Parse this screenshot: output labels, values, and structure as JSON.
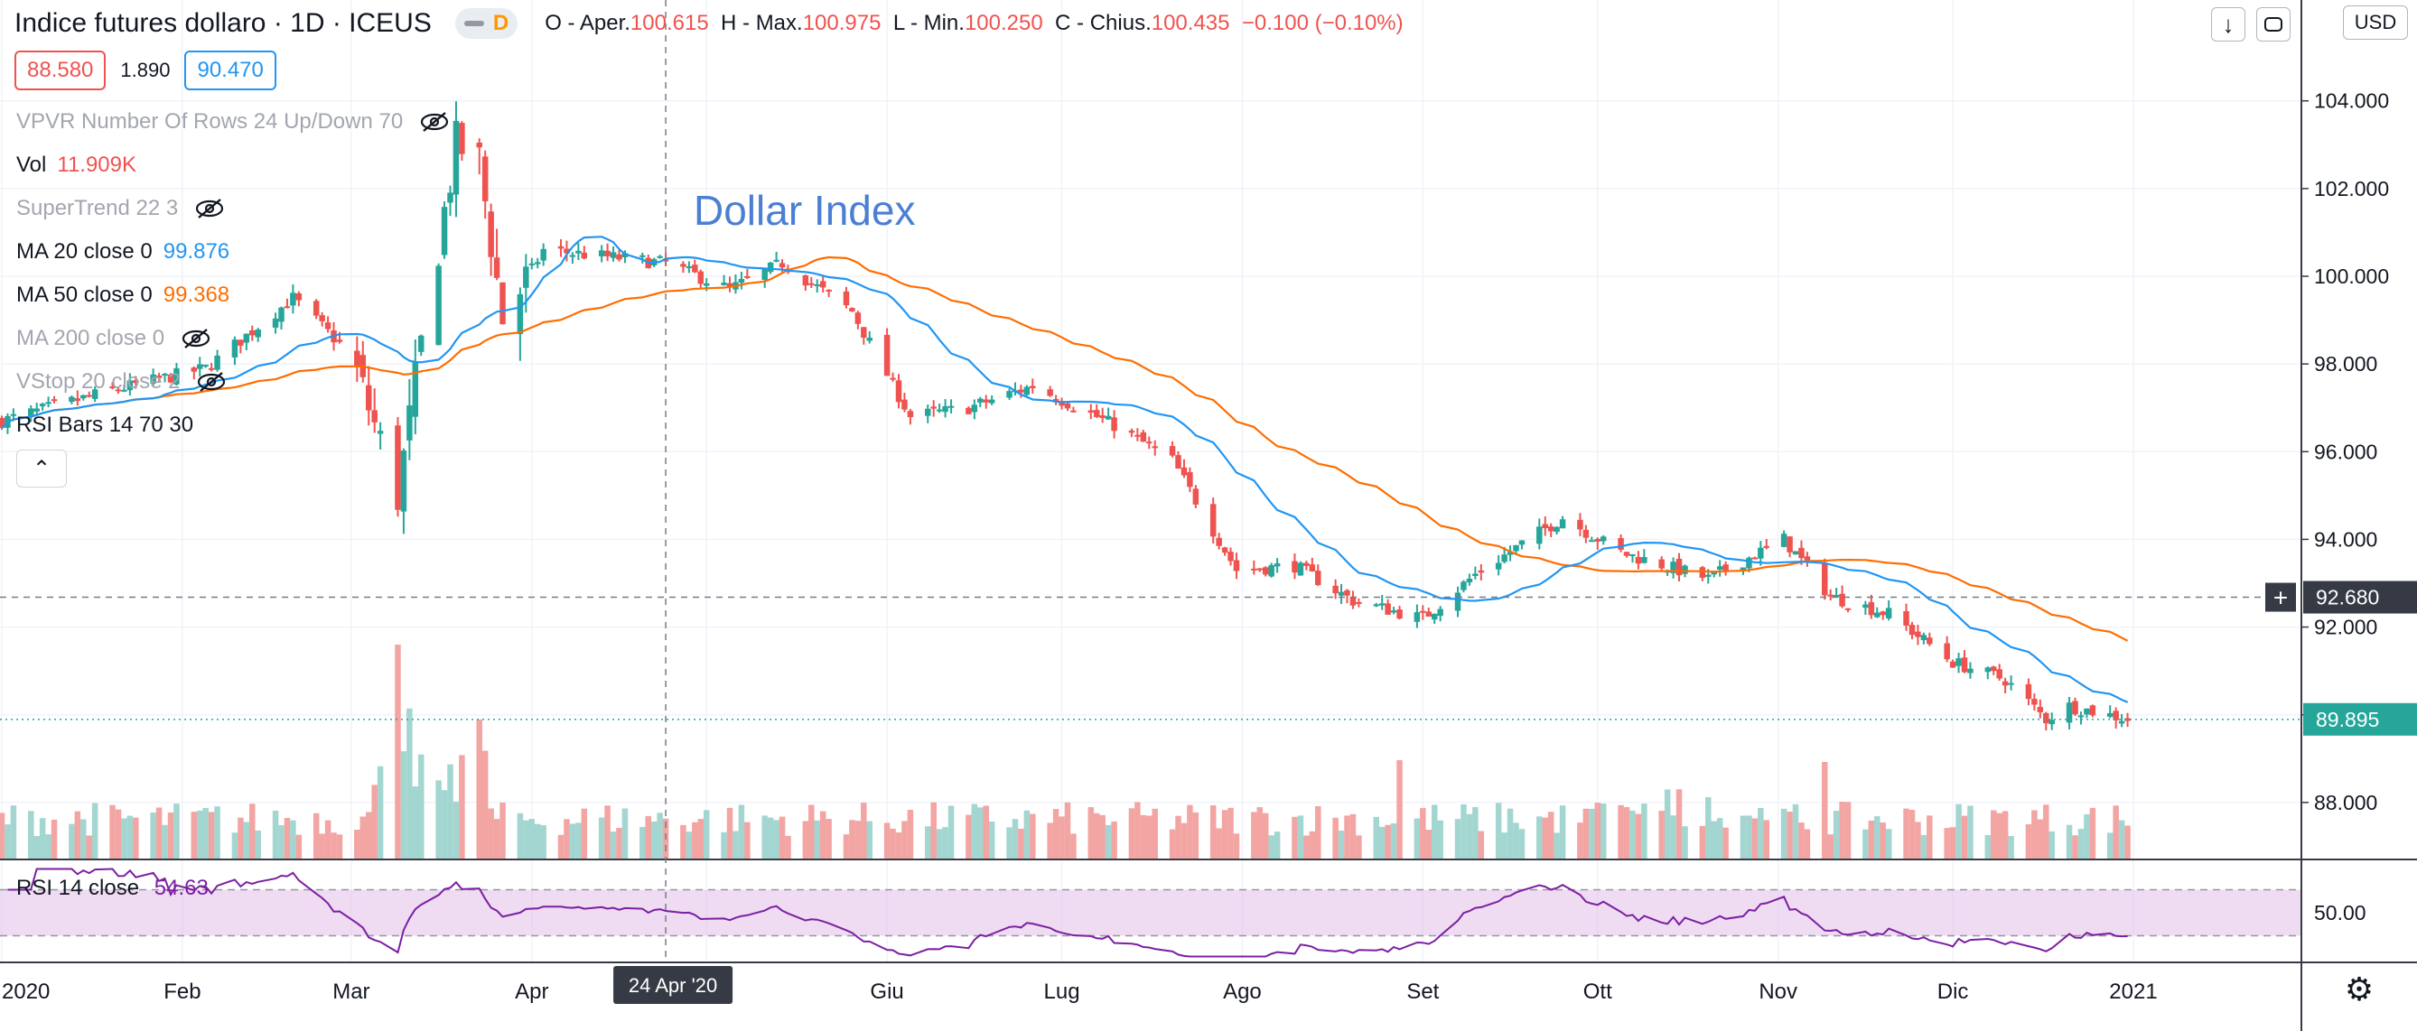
{
  "header": {
    "title": "Indice futures dollaro · 1D · ICEUS",
    "interval_badge": "D",
    "ohlc": {
      "open_label": "O - Aper.",
      "open": "100.615",
      "high_label": "H - Max.",
      "high": "100.975",
      "low_label": "L - Min.",
      "low": "100.250",
      "close_label": "C - Chius.",
      "close": "100.435",
      "change": "−0.100 (−0.10%)"
    },
    "price_boxes": {
      "bid": "88.580",
      "spread": "1.890",
      "ask": "90.470"
    }
  },
  "indicators": [
    {
      "label": "VPVR Number Of Rows 24 Up/Down 70",
      "value": "",
      "hidden": true
    },
    {
      "label": "Vol",
      "value": "11.909K",
      "hidden": false
    },
    {
      "label": "SuperTrend 22 3",
      "value": "",
      "hidden": true
    },
    {
      "label": "MA 20 close 0",
      "value": "99.876",
      "hidden": false
    },
    {
      "label": "MA 50 close 0",
      "value": "99.368",
      "hidden": false
    },
    {
      "label": "MA 200 close 0",
      "value": "",
      "hidden": true
    },
    {
      "label": "VStop 20 close 2",
      "value": "",
      "hidden": true
    },
    {
      "label": "RSI Bars 14 70 30",
      "value": "",
      "hidden": false
    }
  ],
  "rsi": {
    "label": "RSI 14 close",
    "value": "54.63"
  },
  "annotation": "Dollar Index",
  "currency": "USD",
  "crosshair": {
    "price_label": "92.680",
    "date_label": "24 Apr '20"
  },
  "last_price_label": "89.895",
  "colors": {
    "up": "#26a69a",
    "down": "#ef5350",
    "vol_up": "#a3d6d0",
    "vol_down": "#f2a5a3",
    "ma20": "#2196f3",
    "ma50": "#ff6d00",
    "rsi_line": "#7b1fa2",
    "rsi_band": "#e1bee7"
  },
  "icons": {
    "download": "arrow-down-icon",
    "refresh": "refresh-icon",
    "settings": "gear-icon",
    "hidden": "eye-off-icon"
  },
  "chart_data": {
    "type": "candlestick",
    "title": "Indice futures dollaro · 1D · ICEUS",
    "x_range": [
      "2020-01-01",
      "2021-01-01"
    ],
    "x_tick_labels": [
      "2020",
      "Feb",
      "Mar",
      "Apr",
      "24 Apr '20",
      "Giu",
      "Lug",
      "Ago",
      "Set",
      "Ott",
      "Nov",
      "Dic",
      "2021"
    ],
    "y_tick_labels": [
      "88.000",
      "90.000",
      "92.000",
      "94.000",
      "96.000",
      "98.000",
      "100.000",
      "102.000",
      "104.000"
    ],
    "y_range": [
      86.7,
      106.3
    ],
    "rsi_tick_labels": [
      "50.00"
    ],
    "rsi_bands": [
      30,
      70
    ],
    "close_anchors": [
      [
        "2020-01-01",
        96.7
      ],
      [
        "2020-01-20",
        97.4
      ],
      [
        "2020-02-05",
        97.9
      ],
      [
        "2020-02-20",
        99.5
      ],
      [
        "2020-03-01",
        98.2
      ],
      [
        "2020-03-09",
        95.0
      ],
      [
        "2020-03-13",
        98.4
      ],
      [
        "2020-03-19",
        103.0
      ],
      [
        "2020-03-23",
        102.6
      ],
      [
        "2020-03-27",
        99.0
      ],
      [
        "2020-04-03",
        100.6
      ],
      [
        "2020-04-24",
        100.3
      ],
      [
        "2020-05-05",
        99.7
      ],
      [
        "2020-05-14",
        100.3
      ],
      [
        "2020-05-26",
        99.2
      ],
      [
        "2020-06-05",
        96.8
      ],
      [
        "2020-06-15",
        97.0
      ],
      [
        "2020-06-26",
        97.5
      ],
      [
        "2020-07-10",
        96.6
      ],
      [
        "2020-07-20",
        95.8
      ],
      [
        "2020-07-31",
        93.3
      ],
      [
        "2020-08-10",
        93.4
      ],
      [
        "2020-08-20",
        92.6
      ],
      [
        "2020-09-01",
        92.2
      ],
      [
        "2020-09-10",
        93.2
      ],
      [
        "2020-09-25",
        94.5
      ],
      [
        "2020-10-05",
        93.7
      ],
      [
        "2020-10-20",
        93.1
      ],
      [
        "2020-11-02",
        94.0
      ],
      [
        "2020-11-10",
        92.7
      ],
      [
        "2020-11-20",
        92.3
      ],
      [
        "2020-12-01",
        91.2
      ],
      [
        "2020-12-10",
        90.8
      ],
      [
        "2020-12-17",
        89.9
      ],
      [
        "2020-12-21",
        90.2
      ],
      [
        "2020-12-31",
        89.9
      ]
    ],
    "ma20_close": 99.876,
    "ma50_close": 99.368,
    "rsi_last": 54.63,
    "last_price": 89.895,
    "crosshair_price": 92.68,
    "volume_last": "11.909K"
  }
}
